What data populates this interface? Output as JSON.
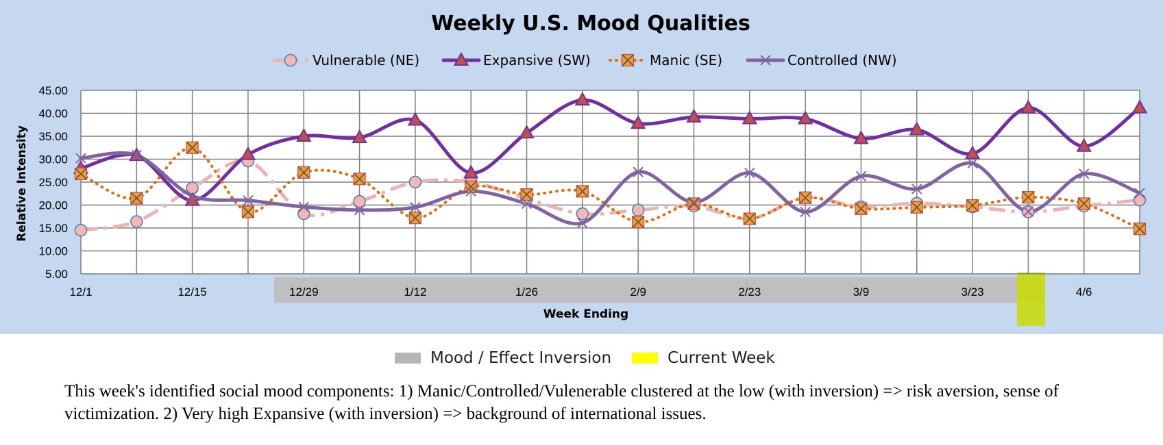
{
  "chart_data": {
    "type": "line",
    "title": "Weekly U.S. Mood Qualities",
    "xlabel": "Week Ending",
    "ylabel": "Relative Intensity",
    "ylim": [
      5,
      45
    ],
    "y_ticks": [
      "5.00",
      "10.00",
      "15.00",
      "20.00",
      "25.00",
      "30.00",
      "35.00",
      "40.00",
      "45.00"
    ],
    "x_tick_labels": [
      "12/1",
      "",
      "12/15",
      "",
      "12/29",
      "",
      "1/12",
      "",
      "1/26",
      "",
      "2/9",
      "",
      "2/23",
      "",
      "3/9",
      "",
      "3/23",
      "",
      "4/6",
      ""
    ],
    "grid": true,
    "legend_position": "top",
    "series": [
      {
        "name": "Vulnerable (NE)",
        "color": "#e8b4b4",
        "marker": "circle",
        "line": "dash-dot",
        "values": [
          14.5,
          16.4,
          23.7,
          29.6,
          18.1,
          20.8,
          25.0,
          25.0,
          21.4,
          18.1,
          18.9,
          19.8,
          17.0,
          21.6,
          19.6,
          20.4,
          19.6,
          18.5,
          19.8,
          21.1
        ]
      },
      {
        "name": "Expansive (SW)",
        "color": "#7030a0",
        "marker": "triangle",
        "line": "solid",
        "values": [
          28.0,
          30.8,
          21.0,
          31.0,
          35.0,
          34.7,
          38.5,
          27.0,
          35.7,
          42.9,
          37.8,
          39.2,
          38.8,
          38.8,
          34.5,
          36.4,
          31.2,
          41.2,
          32.8,
          41.2
        ]
      },
      {
        "name": "Manic (SE)",
        "color": "#e36c09",
        "marker": "square-x",
        "line": "dotted",
        "values": [
          26.8,
          21.5,
          32.5,
          18.5,
          27.1,
          25.7,
          17.2,
          24.0,
          22.3,
          23.0,
          16.3,
          20.3,
          17.0,
          21.6,
          19.2,
          19.5,
          19.9,
          21.7,
          20.3,
          14.8
        ]
      },
      {
        "name": "Controlled (NW)",
        "color": "#8064a2",
        "marker": "x",
        "line": "solid",
        "values": [
          30.2,
          30.9,
          22.0,
          21.0,
          19.6,
          18.9,
          19.5,
          23.0,
          20.3,
          16.1,
          27.2,
          20.6,
          27.0,
          18.5,
          26.3,
          23.5,
          29.1,
          18.6,
          26.8,
          22.6
        ]
      }
    ]
  },
  "highlights": {
    "inversion_color": "#bfbfbf",
    "current_week_color": "#c9dc00",
    "inversion_label": "Mood / Effect Inversion",
    "current_week_label": "Current Week",
    "inversion_swatch_color": "#b5b5b5",
    "current_week_swatch_color": "#ffff00"
  },
  "caption": "This week's identified social mood components: 1) Manic/Controlled/Vulenerable clustered at the low (with inversion) => risk aversion, sense of victimization.  2) Very high Expansive (with inversion) => background of international issues."
}
